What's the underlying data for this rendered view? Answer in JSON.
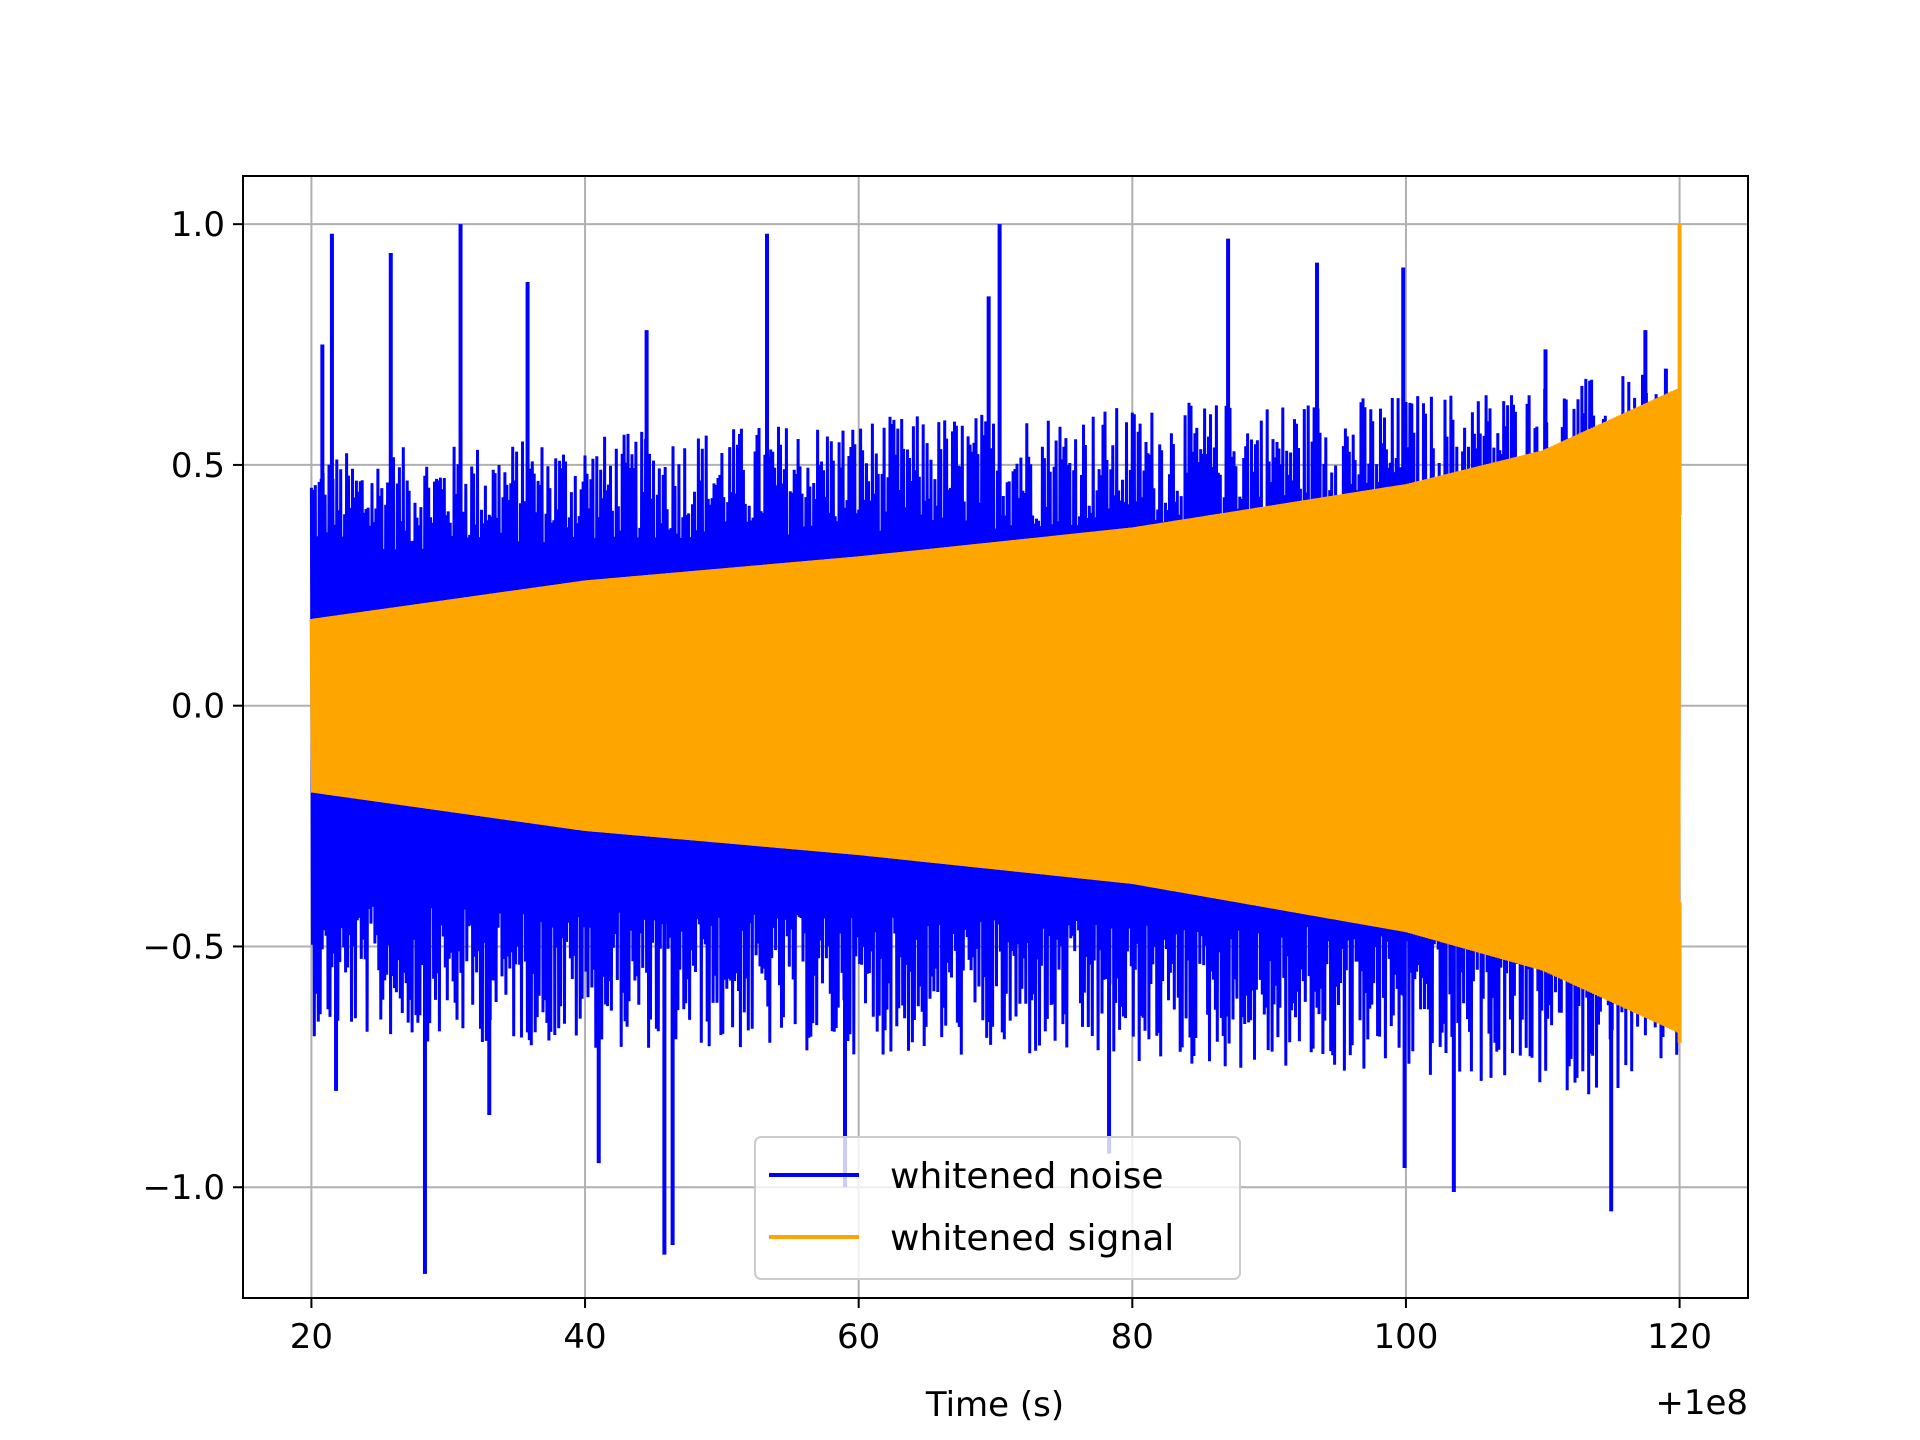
{
  "chart_data": {
    "type": "line",
    "title": "",
    "xlabel": "Time (s)",
    "ylabel": "",
    "x_offset_label": "+1e8",
    "xlim": [
      15,
      125
    ],
    "ylim": [
      -1.23,
      1.1
    ],
    "grid": true,
    "legend_position": "lower-center",
    "x_ticks": [
      20,
      40,
      60,
      80,
      100,
      120
    ],
    "x_tick_labels": [
      "20",
      "40",
      "60",
      "80",
      "100",
      "120"
    ],
    "y_ticks": [
      1.0,
      0.5,
      0.0,
      -0.5,
      -1.0
    ],
    "y_tick_labels": [
      "1.0",
      "0.5",
      "0.0",
      "−0.5",
      "−1.0"
    ],
    "series": [
      {
        "name": "whitened noise",
        "color": "#0000ff",
        "x_range": [
          20,
          120
        ],
        "envelope": {
          "x": [
            20,
            40,
            60,
            80,
            100,
            115,
            120
          ],
          "upper": [
            0.42,
            0.45,
            0.48,
            0.5,
            0.52,
            0.55,
            0.55
          ],
          "lower": [
            -0.55,
            -0.57,
            -0.58,
            -0.6,
            -0.62,
            -0.65,
            -0.6
          ]
        },
        "spikes": [
          {
            "x": 21.5,
            "y": 0.98
          },
          {
            "x": 20.8,
            "y": 0.75
          },
          {
            "x": 25.8,
            "y": 0.94
          },
          {
            "x": 30.9,
            "y": 1.0
          },
          {
            "x": 35.8,
            "y": 0.88
          },
          {
            "x": 44.5,
            "y": 0.78
          },
          {
            "x": 53.3,
            "y": 0.98
          },
          {
            "x": 70.3,
            "y": 1.0
          },
          {
            "x": 69.5,
            "y": 0.85
          },
          {
            "x": 87.0,
            "y": 0.97
          },
          {
            "x": 93.5,
            "y": 0.92
          },
          {
            "x": 99.8,
            "y": 0.91
          },
          {
            "x": 110.2,
            "y": 0.74
          },
          {
            "x": 117.5,
            "y": 0.78
          },
          {
            "x": 119.0,
            "y": 0.7
          },
          {
            "x": 21.8,
            "y": -0.8
          },
          {
            "x": 28.3,
            "y": -1.18
          },
          {
            "x": 45.8,
            "y": -1.14
          },
          {
            "x": 46.4,
            "y": -1.12
          },
          {
            "x": 59.0,
            "y": -1.0
          },
          {
            "x": 78.3,
            "y": -0.93
          },
          {
            "x": 99.9,
            "y": -0.96
          },
          {
            "x": 103.5,
            "y": -1.01
          },
          {
            "x": 115.0,
            "y": -1.05
          },
          {
            "x": 41.0,
            "y": -0.95
          },
          {
            "x": 33.0,
            "y": -0.85
          }
        ]
      },
      {
        "name": "whitened signal",
        "color": "#ffa500",
        "x_range": [
          20,
          120
        ],
        "envelope": {
          "x": [
            20,
            40,
            60,
            80,
            100,
            110,
            120
          ],
          "upper": [
            0.18,
            0.26,
            0.31,
            0.37,
            0.46,
            0.53,
            0.66
          ],
          "lower": [
            -0.18,
            -0.26,
            -0.31,
            -0.37,
            -0.47,
            -0.55,
            -0.68
          ]
        },
        "spikes": [
          {
            "x": 120,
            "y": 1.0
          },
          {
            "x": 120,
            "y": -0.7
          }
        ]
      }
    ]
  }
}
